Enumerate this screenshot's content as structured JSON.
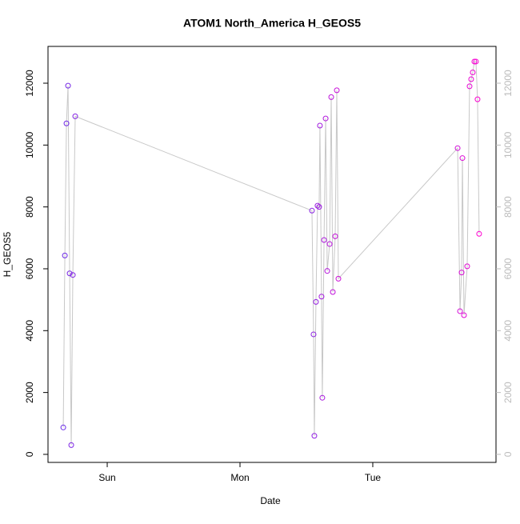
{
  "chart_data": {
    "type": "scatter",
    "title": "ATOM1 North_America H_GEOS5",
    "x_label": "Date",
    "y_label": "H_GEOS5",
    "x": [
      0.669,
      0.681,
      0.693,
      0.705,
      0.717,
      0.729,
      0.741,
      0.759,
      2.542,
      2.554,
      2.56,
      2.572,
      2.584,
      2.596,
      2.602,
      2.614,
      2.62,
      2.633,
      2.645,
      2.657,
      2.675,
      2.687,
      2.699,
      2.717,
      2.729,
      2.741,
      3.639,
      3.657,
      3.669,
      3.675,
      3.687,
      3.711,
      3.729,
      3.741,
      3.753,
      3.765,
      3.777,
      3.789,
      3.801
    ],
    "values": [
      870,
      6430,
      10700,
      11920,
      5850,
      300,
      5800,
      10930,
      7880,
      3880,
      600,
      4930,
      8040,
      8000,
      10630,
      5100,
      1830,
      6930,
      10860,
      5930,
      6800,
      11550,
      5250,
      7050,
      11770,
      5680,
      9900,
      4630,
      5880,
      9580,
      4500,
      6080,
      11900,
      12130,
      12350,
      12700,
      12700,
      11480,
      7130
    ],
    "color_scale": [
      "#6a2be8",
      "#ff00d0"
    ],
    "line_color": "#c8c8c8",
    "xlim": [
      0.554,
      3.928
    ],
    "xticks": [
      {
        "value": 1,
        "label": "Sun"
      },
      {
        "value": 2,
        "label": "Mon"
      },
      {
        "value": 3,
        "label": "Tue"
      }
    ],
    "ylim": [
      -260,
      13190
    ],
    "yticks": [
      0,
      2000,
      4000,
      6000,
      8000,
      10000,
      12000
    ],
    "y2lim": [
      -260,
      13190
    ],
    "y2ticks": [
      0,
      2000,
      4000,
      6000,
      8000,
      10000,
      12000
    ],
    "y2_color": "#bbbbbb"
  }
}
